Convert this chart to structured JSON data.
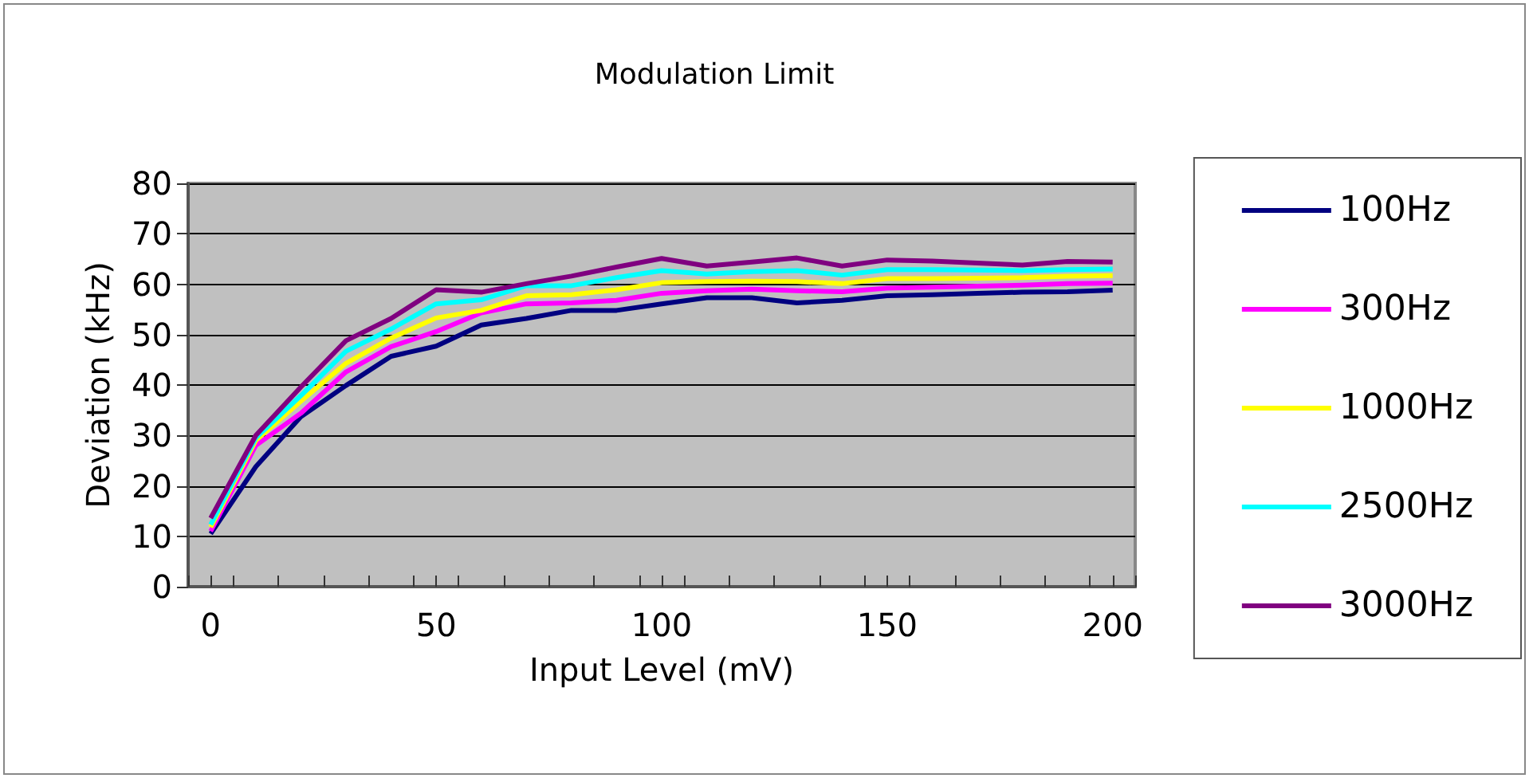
{
  "chart_data": {
    "type": "line",
    "title": "Modulation Limit",
    "xlabel": "Input Level (mV)",
    "ylabel": "Deviation (kHz)",
    "x": [
      0,
      10,
      20,
      30,
      40,
      50,
      60,
      70,
      80,
      90,
      100,
      110,
      120,
      130,
      140,
      150,
      160,
      170,
      180,
      190,
      200
    ],
    "series": [
      {
        "name": "100Hz",
        "color": "#000080",
        "values": [
          10.5,
          23.8,
          33.7,
          39.9,
          45.7,
          47.7,
          51.9,
          53.2,
          54.8,
          54.8,
          56.1,
          57.3,
          57.3,
          56.3,
          56.8,
          57.7,
          57.9,
          58.2,
          58.4,
          58.5,
          58.8
        ]
      },
      {
        "name": "300Hz",
        "color": "#ff00ff",
        "values": [
          11.0,
          28.0,
          34.4,
          42.6,
          47.6,
          50.6,
          54.3,
          56.1,
          56.3,
          56.8,
          58.2,
          58.7,
          59.0,
          58.7,
          58.5,
          59.2,
          59.4,
          59.6,
          59.8,
          60.1,
          60.2
        ]
      },
      {
        "name": "1000Hz",
        "color": "#ffff00",
        "values": [
          11.8,
          29.0,
          36.8,
          44.3,
          49.3,
          53.3,
          54.8,
          57.7,
          57.9,
          58.9,
          60.3,
          60.5,
          60.6,
          60.5,
          60.1,
          61.1,
          61.1,
          61.2,
          61.3,
          61.6,
          61.7
        ]
      },
      {
        "name": "2500Hz",
        "color": "#00ffff",
        "values": [
          12.3,
          29.5,
          37.9,
          46.7,
          51.1,
          56.1,
          56.9,
          59.7,
          59.7,
          61.3,
          62.7,
          62.0,
          62.5,
          62.7,
          61.8,
          62.9,
          62.9,
          62.8,
          62.7,
          62.9,
          63.0
        ]
      },
      {
        "name": "3000Hz",
        "color": "#800080",
        "values": [
          13.6,
          30.0,
          39.6,
          48.8,
          53.2,
          58.9,
          58.4,
          60.1,
          61.6,
          63.4,
          65.1,
          63.6,
          64.4,
          65.2,
          63.6,
          64.8,
          64.6,
          64.2,
          63.8,
          64.5,
          64.4
        ]
      }
    ],
    "xlim": [
      -5,
      205
    ],
    "xticks": [
      {
        "value": -5,
        "label": null
      },
      0,
      {
        "value": 5,
        "label": null
      },
      {
        "value": 15,
        "label": null
      },
      {
        "value": 25,
        "label": null
      },
      {
        "value": 35,
        "label": null
      },
      {
        "value": 45,
        "label": null
      },
      50,
      {
        "value": 55,
        "label": null
      },
      {
        "value": 65,
        "label": null
      },
      {
        "value": 75,
        "label": null
      },
      {
        "value": 85,
        "label": null
      },
      {
        "value": 95,
        "label": null
      },
      100,
      {
        "value": 105,
        "label": null
      },
      {
        "value": 115,
        "label": null
      },
      {
        "value": 125,
        "label": null
      },
      {
        "value": 135,
        "label": null
      },
      {
        "value": 145,
        "label": null
      },
      150,
      {
        "value": 155,
        "label": null
      },
      {
        "value": 165,
        "label": null
      },
      {
        "value": 175,
        "label": null
      },
      {
        "value": 185,
        "label": null
      },
      {
        "value": 195,
        "label": null
      },
      200,
      {
        "value": 205,
        "label": null
      }
    ],
    "ylim": [
      0,
      80
    ],
    "yticks": [
      0,
      10,
      20,
      30,
      40,
      50,
      60,
      70,
      80
    ],
    "grid": "y",
    "legend": "right",
    "marker": "none",
    "line_style": "solid"
  }
}
